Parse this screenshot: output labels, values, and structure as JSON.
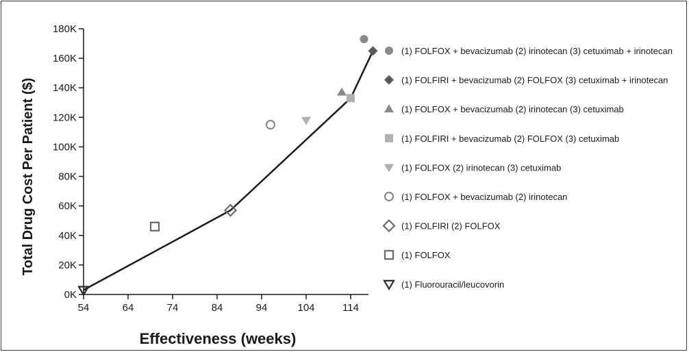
{
  "chart_data": {
    "type": "scatter",
    "xlabel": "Effectiveness (weeks)",
    "ylabel": "Total Drug Cost Per Patient ($)",
    "xlim": [
      54,
      118
    ],
    "ylim": [
      0,
      180000
    ],
    "x_ticks": [
      54,
      64,
      74,
      84,
      94,
      104,
      114
    ],
    "y_ticks": [
      0,
      20000,
      40000,
      60000,
      80000,
      100000,
      120000,
      140000,
      160000,
      180000
    ],
    "x_tick_labels": [
      "54",
      "64",
      "74",
      "84",
      "94",
      "104",
      "114"
    ],
    "y_tick_labels": [
      "0K",
      "20K",
      "40K",
      "60K",
      "80K",
      "100K",
      "120K",
      "140K",
      "160K",
      "180K"
    ],
    "grid": false,
    "legend_position": "right",
    "series": [
      {
        "name": "(1) FOLFOX + bevacizumab (2) irinotecan (3) cetuximab + irinotecan",
        "marker": "circle-filled",
        "color": "#8a8a8a",
        "x": 117,
        "y": 173000
      },
      {
        "name": "(1) FOLFIRI + bevacizumab (2) FOLFOX (3) cetuximab + irinotecan",
        "marker": "diamond-filled",
        "color": "#5a5a5a",
        "x": 119,
        "y": 165000
      },
      {
        "name": "(1) FOLFOX + bevacizumab (2) irinotecan (3) cetuximab",
        "marker": "triangle-up-filled",
        "color": "#8a8a8a",
        "x": 112,
        "y": 137000
      },
      {
        "name": "(1) FOLFIRI + bevacizumab (2) FOLFOX (3) cetuximab",
        "marker": "square-filled",
        "color": "#b0b0b0",
        "x": 114,
        "y": 133000
      },
      {
        "name": "(1) FOLFOX (2) irinotecan (3) cetuximab",
        "marker": "triangle-down-filled",
        "color": "#b0b0b0",
        "x": 104,
        "y": 118000
      },
      {
        "name": "(1) FOLFOX + bevacizumab (2) irinotecan",
        "marker": "circle-open",
        "color": "#8a8a8a",
        "x": 96,
        "y": 115000
      },
      {
        "name": "(1) FOLFIRI (2) FOLFOX",
        "marker": "diamond-open",
        "color": "#6a6a6a",
        "x": 87,
        "y": 57000
      },
      {
        "name": "(1) FOLFOX",
        "marker": "square-open",
        "color": "#6a6a6a",
        "x": 70,
        "y": 46000
      },
      {
        "name": "(1) Fluorouracil/leucovorin",
        "marker": "triangle-down-open",
        "color": "#2a2a2a",
        "x": 54,
        "y": 3000
      }
    ],
    "frontier": {
      "x": [
        54,
        87,
        114,
        119
      ],
      "y": [
        3000,
        57000,
        133000,
        165000
      ],
      "color": "#1a1a1a"
    }
  }
}
